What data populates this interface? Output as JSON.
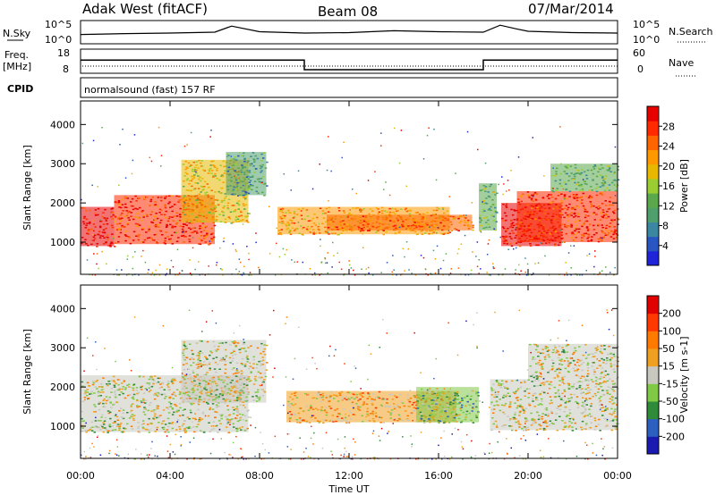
{
  "header": {
    "station": "Adak West (fitACF)",
    "beam": "Beam 08",
    "date": "07/Mar/2014"
  },
  "strip": {
    "nsky_label": "N.Sky",
    "nsky_ticks": [
      "10^5",
      "10^0"
    ],
    "nsearch_label": "N.Search",
    "nsearch_ticks": [
      "10^5",
      "10^0"
    ],
    "freq_label": "Freq.",
    "freq_unit": "[MHz]",
    "freq_ticks": [
      "18",
      "8"
    ],
    "nave_label": "Nave",
    "nave_ticks": [
      "60",
      "0"
    ],
    "cpid_label": "CPID",
    "cpid_value": "normalsound (fast) 157 RF"
  },
  "chart_data": [
    {
      "type": "line",
      "name": "noise-strip",
      "ylabel": "N.Sky",
      "y2label": "N.Search",
      "x": [
        "00:00",
        "02:00",
        "04:00",
        "06:00",
        "06:45",
        "08:00",
        "10:00",
        "12:00",
        "14:00",
        "16:00",
        "18:00",
        "18:45",
        "19:30",
        "20:00",
        "22:00",
        "24:00"
      ],
      "values": [
        2.0,
        2.2,
        2.3,
        2.5,
        3.8,
        2.6,
        2.3,
        2.4,
        2.8,
        2.6,
        2.5,
        4.0,
        3.2,
        2.7,
        2.4,
        2.3
      ],
      "ylim": [
        0,
        5
      ]
    },
    {
      "type": "line",
      "name": "freq-nave",
      "ylabel": "Freq. [MHz]",
      "y2label": "Nave",
      "x": [
        "00:00",
        "10:00",
        "10:00",
        "18:00",
        "18:00",
        "24:00"
      ],
      "freq_mhz": [
        13.5,
        13.5,
        9.5,
        9.5,
        13.5,
        13.5
      ],
      "nave": [
        7,
        7,
        7,
        7,
        7,
        7
      ],
      "ylim": [
        8,
        18
      ],
      "y2lim": [
        0,
        60
      ]
    },
    {
      "type": "heatmap",
      "name": "power",
      "xlabel": "Time UT",
      "ylabel": "Slant Range [km]",
      "xlim": [
        0,
        24
      ],
      "ylim": [
        180,
        4600
      ],
      "x_ticks": [
        "00:00",
        "04:00",
        "08:00",
        "12:00",
        "16:00",
        "20:00",
        "00:00"
      ],
      "y_ticks": [
        1000,
        2000,
        3000,
        4000
      ],
      "colorbar_label": "Power [dB]",
      "colorbar_ticks": [
        4,
        8,
        12,
        16,
        20,
        24,
        28
      ],
      "colors": [
        "#1f24d9",
        "#2a56c4",
        "#3b86a0",
        "#4f9f6c",
        "#5aa84b",
        "#9acd32",
        "#e6b800",
        "#ff9900",
        "#ff6600",
        "#ff2a00",
        "#e60000"
      ],
      "regions": [
        {
          "t0": 0.0,
          "t1": 1.5,
          "r0": 900,
          "r1": 1900,
          "level": 10
        },
        {
          "t0": 1.5,
          "t1": 6.0,
          "r0": 950,
          "r1": 2200,
          "level": 9
        },
        {
          "t0": 4.5,
          "t1": 7.5,
          "r0": 1500,
          "r1": 3100,
          "level": 6
        },
        {
          "t0": 6.5,
          "t1": 8.3,
          "r0": 2200,
          "r1": 3300,
          "level": 3
        },
        {
          "t0": 8.8,
          "t1": 16.5,
          "r0": 1200,
          "r1": 1900,
          "level": 7
        },
        {
          "t0": 11.0,
          "t1": 17.5,
          "r0": 1300,
          "r1": 1700,
          "level": 8
        },
        {
          "t0": 17.8,
          "t1": 18.6,
          "r0": 1300,
          "r1": 2500,
          "level": 4
        },
        {
          "t0": 18.8,
          "t1": 21.5,
          "r0": 900,
          "r1": 2000,
          "level": 10
        },
        {
          "t0": 19.5,
          "t1": 24.0,
          "r0": 1000,
          "r1": 2300,
          "level": 9
        },
        {
          "t0": 21.0,
          "t1": 24.0,
          "r0": 2300,
          "r1": 3000,
          "level": 4
        }
      ]
    },
    {
      "type": "heatmap",
      "name": "velocity",
      "xlabel": "Time UT",
      "ylabel": "Slant Range [km]",
      "xlim": [
        0,
        24
      ],
      "ylim": [
        180,
        4600
      ],
      "x_ticks": [
        "00:00",
        "04:00",
        "08:00",
        "12:00",
        "16:00",
        "20:00",
        "00:00"
      ],
      "y_ticks": [
        1000,
        2000,
        3000,
        4000
      ],
      "colorbar_label": "Velocity [m s-1]",
      "colorbar_ticks": [
        "200",
        "100",
        "50",
        "15",
        "-15",
        "-50",
        "-100",
        "-200"
      ],
      "colors": [
        "#1a1ab0",
        "#2c5fc0",
        "#2f8a3a",
        "#7fc947",
        "#c8c8c0",
        "#f0a020",
        "#ff7a00",
        "#ff3a00",
        "#e00000"
      ],
      "regions": [
        {
          "t0": 0.0,
          "t1": 7.5,
          "r0": 850,
          "r1": 2300,
          "level": 4
        },
        {
          "t0": 4.5,
          "t1": 8.3,
          "r0": 1600,
          "r1": 3200,
          "level": 4
        },
        {
          "t0": 9.2,
          "t1": 16.8,
          "r0": 1100,
          "r1": 1900,
          "level": 5
        },
        {
          "t0": 15.0,
          "t1": 17.8,
          "r0": 1100,
          "r1": 2000,
          "level": 3
        },
        {
          "t0": 18.3,
          "t1": 24.0,
          "r0": 900,
          "r1": 2200,
          "level": 4
        },
        {
          "t0": 20.0,
          "t1": 24.0,
          "r0": 2200,
          "r1": 3100,
          "level": 4
        }
      ]
    }
  ]
}
